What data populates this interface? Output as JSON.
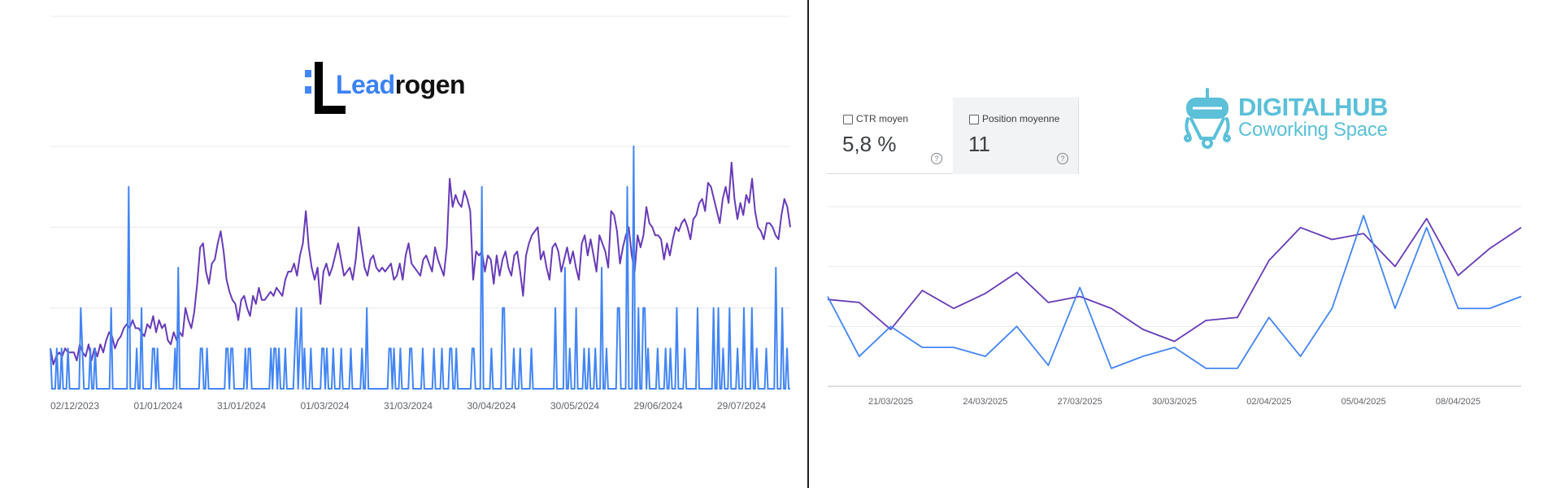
{
  "left": {
    "brand": {
      "part1": "Lead",
      "part2": "rogen"
    },
    "chart_data": {
      "type": "line",
      "x_tick_labels": [
        "02/12/2023",
        "01/01/2024",
        "31/01/2024",
        "01/03/2024",
        "31/03/2024",
        "30/04/2024",
        "30/05/2024",
        "29/06/2024",
        "29/07/2024"
      ],
      "ylim": [
        0,
        60
      ],
      "grid": true,
      "series": [
        {
          "color": "#673ab7",
          "values": [
            10,
            6,
            8,
            9,
            8,
            10,
            9,
            9,
            9,
            7,
            11,
            9,
            8,
            11,
            7,
            10,
            8,
            11,
            9,
            12,
            14,
            13,
            10,
            12,
            13,
            15,
            16,
            15,
            17,
            15,
            15,
            14,
            13,
            16,
            15,
            18,
            14,
            17,
            15,
            16,
            12,
            11,
            14,
            12,
            14,
            13,
            20,
            17,
            15,
            19,
            26,
            35,
            36,
            29,
            26,
            31,
            32,
            36,
            39,
            34,
            27,
            24,
            22,
            21,
            17,
            22,
            23,
            20,
            18,
            23,
            21,
            25,
            22,
            22,
            23,
            24,
            23,
            25,
            24,
            23,
            27,
            29,
            29,
            31,
            28,
            33,
            36,
            44,
            35,
            30,
            27,
            30,
            21,
            29,
            31,
            28,
            30,
            33,
            36,
            32,
            28,
            29,
            30,
            27,
            32,
            40,
            35,
            30,
            28,
            32,
            33,
            30,
            29,
            30,
            29,
            30,
            31,
            27,
            28,
            31,
            27,
            33,
            36,
            31,
            30,
            29,
            28,
            32,
            33,
            31,
            29,
            35,
            32,
            30,
            28,
            35,
            52,
            45,
            48,
            46,
            45,
            49,
            47,
            44,
            27,
            34,
            33,
            34,
            29,
            33,
            32,
            26,
            33,
            28,
            32,
            34,
            30,
            28,
            33,
            34,
            29,
            23,
            33,
            36,
            38,
            39,
            40,
            32,
            34,
            30,
            27,
            35,
            36,
            34,
            29,
            32,
            35,
            31,
            34,
            30,
            27,
            36,
            38,
            33,
            37,
            33,
            29,
            38,
            36,
            34,
            30,
            44,
            43,
            39,
            31,
            35,
            38,
            40,
            33,
            29,
            38,
            35,
            38,
            45,
            41,
            40,
            38,
            38,
            37,
            32,
            36,
            33,
            37,
            40,
            39,
            41,
            42,
            40,
            37,
            42,
            43,
            46,
            47,
            44,
            51,
            50,
            47,
            44,
            41,
            47,
            50,
            46,
            56,
            47,
            42,
            46,
            43,
            48,
            46,
            52,
            44,
            40,
            39,
            37,
            41,
            41,
            40,
            38,
            37,
            43,
            47,
            45,
            40
          ]
        },
        {
          "color": "#4285f4",
          "values": [
            10,
            0,
            0,
            0,
            10,
            0,
            0,
            10,
            0,
            0,
            0,
            10,
            0,
            0,
            0,
            0,
            0,
            0,
            0,
            20,
            10,
            0,
            0,
            0,
            0,
            10,
            0,
            0,
            10,
            0,
            0,
            0,
            0,
            0,
            0,
            0,
            0,
            0,
            20,
            0,
            0,
            0,
            0,
            0,
            0,
            0,
            0,
            0,
            0,
            50,
            0,
            0,
            0,
            0,
            10,
            0,
            0,
            20,
            0,
            0,
            0,
            0,
            0,
            0,
            10,
            10,
            0,
            10,
            0,
            0,
            0,
            0,
            0,
            0,
            0,
            0,
            0,
            0,
            10,
            0,
            30,
            0,
            0,
            0,
            0,
            0,
            0,
            0,
            0,
            0,
            0,
            0,
            0,
            0,
            10,
            10,
            0,
            0,
            10,
            0,
            0,
            0,
            0,
            0,
            0,
            0,
            0,
            0,
            0,
            0,
            10,
            10,
            0,
            10,
            10,
            0,
            0,
            0,
            0,
            0,
            0,
            0,
            10,
            0,
            10,
            10,
            0,
            0,
            0,
            0,
            0,
            0,
            0,
            0,
            0,
            0,
            0,
            0,
            10,
            0,
            10,
            10,
            0,
            10,
            0,
            0,
            0,
            10,
            0,
            0,
            0,
            0,
            0,
            10,
            20,
            0,
            10,
            20,
            0,
            10,
            0,
            0,
            0,
            10,
            0,
            0,
            0,
            0,
            0,
            0,
            10,
            10,
            0,
            10,
            0,
            0,
            0,
            10,
            0,
            0,
            0,
            0,
            10,
            0,
            0,
            0,
            0,
            0,
            10,
            0,
            0,
            0,
            0,
            0,
            0,
            10,
            0,
            0,
            20,
            0,
            0,
            0,
            0,
            0,
            0,
            0,
            0,
            0,
            0,
            0,
            0,
            0,
            10,
            10,
            0,
            10,
            0,
            0,
            0,
            10,
            0,
            0,
            0,
            0,
            0,
            10,
            10,
            0,
            0,
            0,
            0,
            0,
            0,
            10,
            0,
            0,
            0,
            0,
            0,
            0,
            10,
            0,
            0,
            0,
            0,
            10,
            0,
            0,
            0,
            0,
            10,
            10,
            0,
            0,
            10,
            0,
            0,
            0,
            0,
            0,
            0,
            0,
            0,
            0,
            10,
            10,
            0,
            0,
            0,
            0,
            50,
            0,
            0,
            0,
            0,
            0,
            10,
            0,
            0,
            0,
            0,
            0,
            0,
            20,
            20,
            0,
            0,
            0,
            0,
            0,
            10,
            0,
            0,
            0,
            10,
            0,
            0,
            0,
            0,
            0,
            0,
            10,
            0,
            0,
            0,
            0,
            0,
            0,
            0,
            0,
            0,
            0,
            0,
            0,
            0,
            0,
            20,
            0,
            0,
            0,
            0,
            0,
            30,
            0,
            0,
            10,
            0,
            0,
            0,
            20,
            0,
            0,
            0,
            0,
            10,
            0,
            0,
            10,
            0,
            0,
            0,
            10,
            0,
            0,
            0,
            30,
            0,
            0,
            10,
            0,
            0,
            0,
            0,
            0,
            0,
            20,
            20,
            0,
            0,
            0,
            0,
            50,
            0,
            0,
            0,
            60,
            0,
            0,
            20,
            0,
            0,
            20,
            20,
            0,
            10,
            0,
            0,
            0,
            0,
            0,
            10,
            0,
            0,
            0,
            0,
            10,
            0,
            0,
            10,
            0,
            0,
            0,
            20,
            0,
            0,
            0,
            0,
            10,
            0,
            0,
            0,
            0,
            0,
            0,
            0,
            20,
            0,
            0,
            0,
            0,
            0,
            0,
            0,
            0,
            0,
            20,
            0,
            0,
            20,
            0,
            0,
            10,
            0,
            0,
            0,
            20,
            0,
            0,
            0,
            0,
            10,
            0,
            0,
            0,
            20,
            0,
            0,
            0,
            0,
            20,
            0,
            0,
            10,
            0,
            0,
            0,
            0,
            0,
            10,
            0,
            0,
            0,
            0,
            0,
            30,
            0,
            0,
            0,
            20,
            0,
            0,
            10,
            0,
            0
          ]
        }
      ]
    }
  },
  "right": {
    "brand": {
      "name": "DIGITALHUB",
      "sub": "Coworking Space"
    },
    "metrics": [
      {
        "label": "CTR moyen",
        "value": "5,8 %",
        "selected": false
      },
      {
        "label": "Position moyenne",
        "value": "11",
        "selected": false
      }
    ],
    "help_glyph": "?",
    "chart_data": {
      "type": "line",
      "x_tick_labels": [
        "21/03/2025",
        "24/03/2025",
        "27/03/2025",
        "30/03/2025",
        "02/04/2025",
        "05/04/2025",
        "08/04/2025"
      ],
      "x_tick_positions": [
        2,
        5,
        8,
        11,
        14,
        17,
        20
      ],
      "ylim": [
        0,
        60
      ],
      "grid": true,
      "series": [
        {
          "color": "#673ab7",
          "values": [
            29,
            28,
            19,
            32,
            26,
            31,
            38,
            28,
            30,
            26,
            19,
            15,
            22,
            23,
            42,
            53,
            49,
            51,
            40,
            56,
            37,
            46,
            53
          ]
        },
        {
          "color": "#4285f4",
          "values": [
            30,
            10,
            20,
            13,
            13,
            10,
            20,
            7,
            33,
            6,
            10,
            13,
            6,
            6,
            23,
            10,
            26,
            57,
            26,
            53,
            26,
            26,
            30
          ]
        }
      ]
    }
  }
}
